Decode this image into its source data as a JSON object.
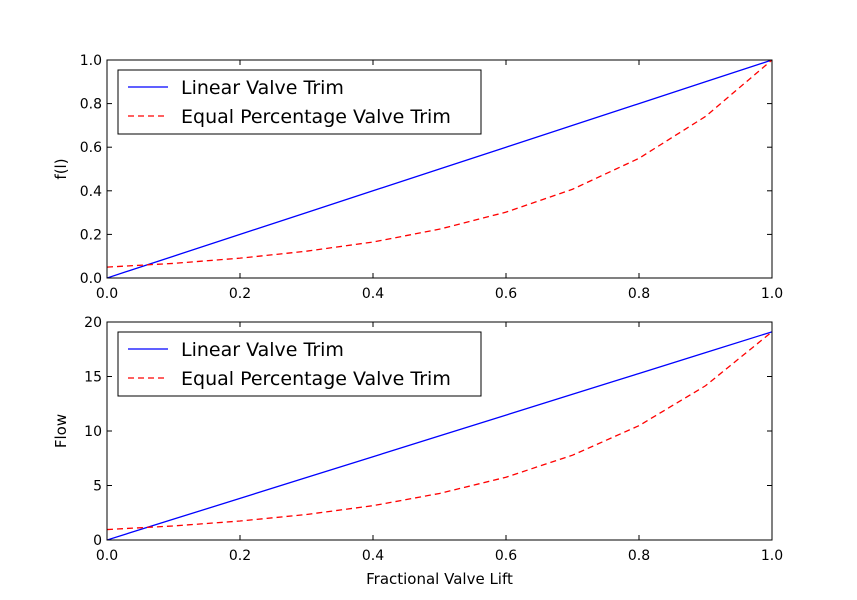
{
  "chart_data": [
    {
      "type": "line",
      "ylabel": "f(l)",
      "xlabel": "",
      "xlim": [
        0,
        1
      ],
      "ylim": [
        0,
        1
      ],
      "xticks": [
        0.0,
        0.2,
        0.4,
        0.6,
        0.8,
        1.0
      ],
      "xtick_labels": [
        "0.0",
        "0.2",
        "0.4",
        "0.6",
        "0.8",
        "1.0"
      ],
      "yticks": [
        0.0,
        0.2,
        0.4,
        0.6,
        0.8,
        1.0
      ],
      "ytick_labels": [
        "0.0",
        "0.2",
        "0.4",
        "0.6",
        "0.8",
        "1.0"
      ],
      "legend_position": "top-left",
      "series": [
        {
          "name": "Linear Valve Trim",
          "color": "#0000ff",
          "style": "solid",
          "x": [
            0.0,
            0.1,
            0.2,
            0.3,
            0.4,
            0.5,
            0.6,
            0.7,
            0.8,
            0.9,
            1.0
          ],
          "y": [
            0.0,
            0.1,
            0.2,
            0.3,
            0.4,
            0.5,
            0.6,
            0.7,
            0.8,
            0.9,
            1.0
          ]
        },
        {
          "name": "Equal Percentage Valve Trim",
          "color": "#ff0000",
          "style": "dashed",
          "x": [
            0.0,
            0.1,
            0.2,
            0.3,
            0.4,
            0.5,
            0.6,
            0.7,
            0.8,
            0.9,
            1.0
          ],
          "y": [
            0.05,
            0.067,
            0.091,
            0.123,
            0.165,
            0.224,
            0.302,
            0.407,
            0.549,
            0.741,
            1.0
          ]
        }
      ]
    },
    {
      "type": "line",
      "ylabel": "Flow",
      "xlabel": "Fractional Valve Lift",
      "xlim": [
        0,
        1
      ],
      "ylim": [
        0,
        20
      ],
      "xticks": [
        0.0,
        0.2,
        0.4,
        0.6,
        0.8,
        1.0
      ],
      "xtick_labels": [
        "0.0",
        "0.2",
        "0.4",
        "0.6",
        "0.8",
        "1.0"
      ],
      "yticks": [
        0,
        5,
        10,
        15,
        20
      ],
      "ytick_labels": [
        "0",
        "5",
        "10",
        "15",
        "20"
      ],
      "legend_position": "top-left",
      "series": [
        {
          "name": "Linear Valve Trim",
          "color": "#0000ff",
          "style": "solid",
          "x": [
            0.0,
            0.1,
            0.2,
            0.3,
            0.4,
            0.5,
            0.6,
            0.7,
            0.8,
            0.9,
            1.0
          ],
          "y": [
            0.0,
            1.91,
            3.82,
            5.73,
            7.64,
            9.55,
            11.46,
            13.37,
            15.28,
            17.19,
            19.1
          ]
        },
        {
          "name": "Equal Percentage Valve Trim",
          "color": "#ff0000",
          "style": "dashed",
          "x": [
            0.0,
            0.1,
            0.2,
            0.3,
            0.4,
            0.5,
            0.6,
            0.7,
            0.8,
            0.9,
            1.0
          ],
          "y": [
            0.96,
            1.29,
            1.74,
            2.34,
            3.15,
            4.27,
            5.76,
            7.78,
            10.49,
            14.15,
            19.1
          ]
        }
      ]
    }
  ]
}
